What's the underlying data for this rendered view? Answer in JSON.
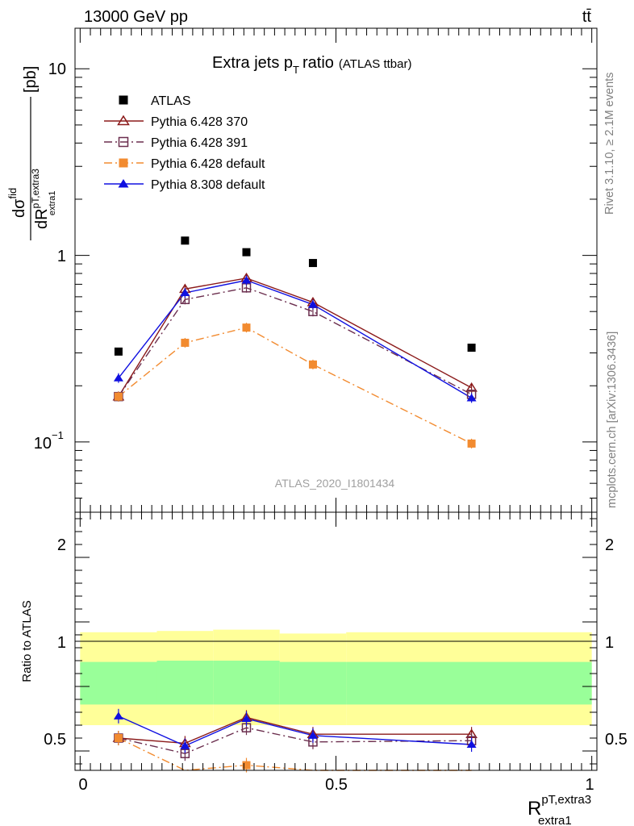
{
  "header": {
    "left": "13000 GeV pp",
    "right": "tt̄"
  },
  "side_text": {
    "rivet": "Rivet 3.1.10, ≥ 2.1M events",
    "mcplots": "mcplots.cern.ch [arXiv:1306.3436]"
  },
  "chart_data": {
    "type": "scatter",
    "title": "Extra jets p",
    "title_sub": "T",
    "title_tail": "ratio",
    "title_small": "(ATLAS ttbar)",
    "analysis_label": "ATLAS_2020_I1801434",
    "ylabel_pb": "[pb]",
    "xlabel_main": "R",
    "xlabel_sup": "pT,extra3",
    "xlabel_sub": "extra1",
    "ratio_ylabel": "Ratio to ATLAS",
    "xlim": [
      -0.01,
      1.01
    ],
    "main_ylim": [
      0.042,
      16.5
    ],
    "main_yscale": "log",
    "main_y_tick_labels": {
      "ten": "10",
      "one": "1",
      "tenth_base": "10",
      "tenth_exp": "−1"
    },
    "ratio_ylim": [
      0.35,
      2.35
    ],
    "ratio_y_ticks": [
      "0.5",
      "1",
      "2"
    ],
    "x_ticks": [
      "0",
      "0.5",
      "1"
    ],
    "x": [
      0.075,
      0.205,
      0.325,
      0.455,
      0.765
    ],
    "bin_edges": [
      0.0,
      0.15,
      0.26,
      0.39,
      0.52,
      1.0
    ],
    "band_yellow": [
      [
        0.7,
        1.42
      ],
      [
        0.7,
        1.43
      ],
      [
        0.7,
        1.44
      ],
      [
        0.7,
        1.41
      ],
      [
        0.7,
        1.42
      ]
    ],
    "band_green": [
      [
        0.86,
        1.19
      ],
      [
        0.86,
        1.2
      ],
      [
        0.86,
        1.2
      ],
      [
        0.86,
        1.19
      ],
      [
        0.86,
        1.19
      ]
    ],
    "series": [
      {
        "name": "ATLAS",
        "color": "#000000",
        "marker": "square-filled",
        "line": "none",
        "values": [
          0.305,
          1.2,
          1.04,
          0.91,
          0.32
        ],
        "ratio": [
          1,
          1,
          1,
          1,
          1
        ]
      },
      {
        "name": "Pythia 6.428 370",
        "color": "#8b1a1a",
        "marker": "triangle-open",
        "line": "solid",
        "values": [
          0.175,
          0.66,
          0.755,
          0.56,
          0.195
        ],
        "ratio": [
          0.6,
          0.56,
          0.76,
          0.63,
          0.63
        ]
      },
      {
        "name": "Pythia 6.428 391",
        "color": "#6b2e4e",
        "marker": "square-open",
        "line": "dashdot",
        "values": [
          0.175,
          0.58,
          0.67,
          0.5,
          0.18
        ],
        "ratio": [
          0.6,
          0.48,
          0.68,
          0.57,
          0.58
        ]
      },
      {
        "name": "Pythia 6.428 default",
        "color": "#f28b30",
        "marker": "square-filled",
        "line": "dashdot",
        "values": [
          0.175,
          0.34,
          0.41,
          0.26,
          0.098
        ],
        "ratio": [
          0.6,
          0.28,
          0.39,
          0.29,
          0.31
        ]
      },
      {
        "name": "Pythia 8.308 default",
        "color": "#1010e0",
        "marker": "triangle-filled",
        "line": "solid",
        "values": [
          0.22,
          0.63,
          0.735,
          0.545,
          0.172
        ],
        "ratio": [
          0.77,
          0.54,
          0.75,
          0.62,
          0.55
        ]
      }
    ]
  }
}
